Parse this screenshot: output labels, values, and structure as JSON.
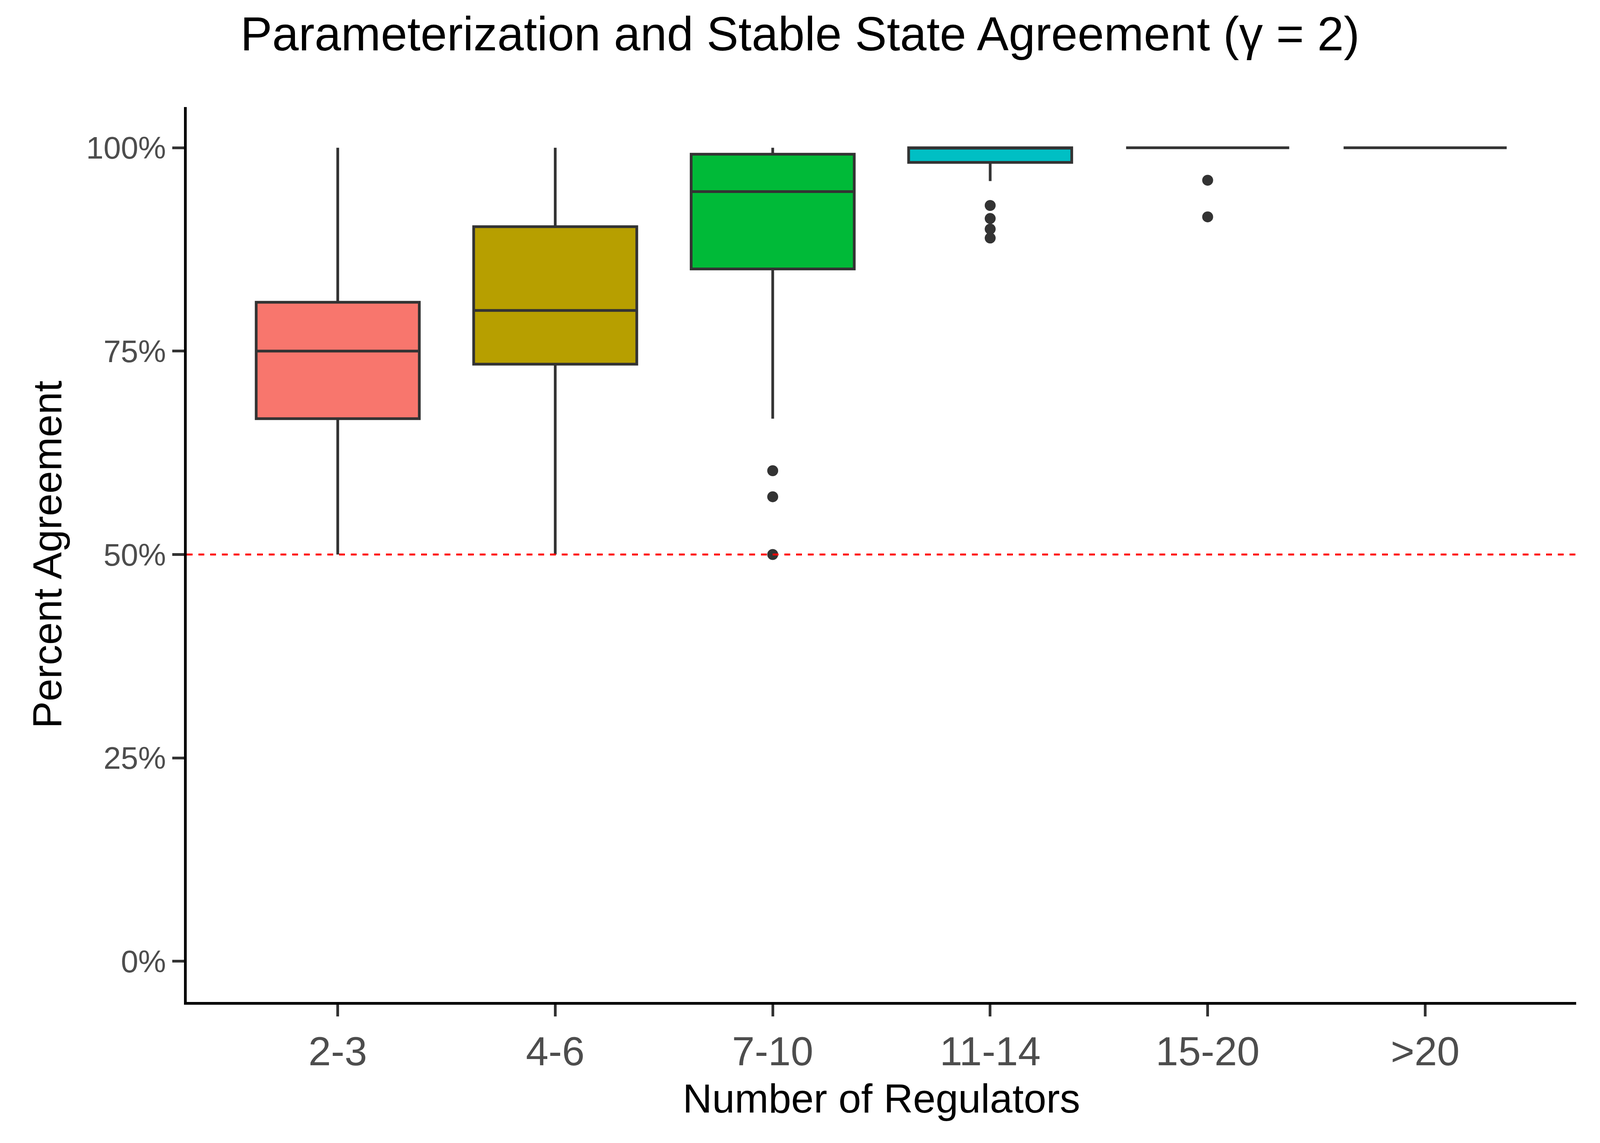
{
  "chart_data": {
    "type": "box",
    "title": "Parameterization and Stable State Agreement (γ = 2)",
    "x_label": "Number of Regulators",
    "y_label": "Percent Agreement",
    "categories": [
      "2-3",
      "4-6",
      "7-10",
      "11-14",
      "15-20",
      ">20"
    ],
    "colors": [
      "#F8766D",
      "#B79F00",
      "#00BA38",
      "#00BFC4",
      "#619CFF",
      "#F564E3"
    ],
    "lower_whisker": [
      50,
      50,
      66.7,
      95.9,
      100,
      100
    ],
    "q1": [
      66.7,
      73.4,
      85.1,
      98.2,
      100,
      100
    ],
    "median": [
      75,
      80,
      94.6,
      100,
      100,
      100
    ],
    "q3": [
      81,
      90.3,
      99.2,
      100,
      100,
      100
    ],
    "upper_whisker": [
      100,
      100,
      100,
      100,
      100,
      100
    ],
    "outliers": [
      [],
      [],
      [
        60.3,
        57.1,
        50
      ],
      [
        92.9,
        91.3,
        90,
        88.9
      ],
      [
        96,
        91.5
      ],
      []
    ],
    "ylim": [
      -5,
      105
    ],
    "yticks": [
      {
        "value": 0,
        "label": "0%"
      },
      {
        "value": 25,
        "label": "25%"
      },
      {
        "value": 50,
        "label": "50%"
      },
      {
        "value": 75,
        "label": "75%"
      },
      {
        "value": 100,
        "label": "100%"
      }
    ],
    "grid": false,
    "reference_line": {
      "value": 50,
      "color": "#FF0000",
      "line_style": "dashed"
    }
  }
}
